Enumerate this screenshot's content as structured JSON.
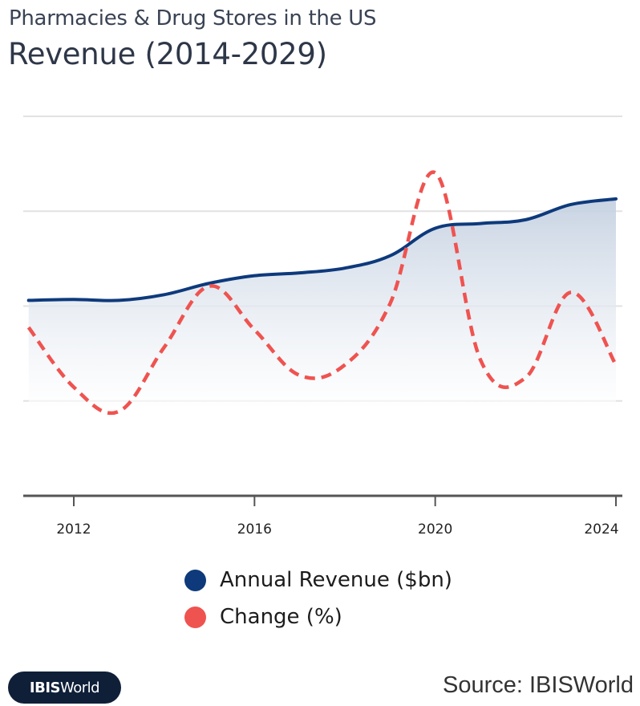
{
  "header": {
    "subtitle": "Pharmacies & Drug Stores in the US",
    "title": "Revenue (2014-2029)"
  },
  "chart_data": {
    "type": "line",
    "title": "Revenue (2014-2029)",
    "subtitle": "Pharmacies & Drug Stores in the US",
    "xlabel": "",
    "ylabel": "",
    "x": [
      2011,
      2012,
      2013,
      2014,
      2015,
      2016,
      2017,
      2018,
      2019,
      2020,
      2021,
      2022,
      2023,
      2024
    ],
    "xticks": [
      "2012",
      "2016",
      "2020",
      "2024"
    ],
    "xtick_values": [
      2012,
      2016,
      2020,
      2024
    ],
    "xlim": [
      2010.9,
      2024.1
    ],
    "grid": true,
    "y_tick_labels_shown": false,
    "series": [
      {
        "name": "Annual Revenue ($bn)",
        "style": "solid-area",
        "color": "#0e3a7c",
        "axis": "left",
        "ylim": [
          100,
          500
        ],
        "values": [
          306,
          307,
          306,
          312,
          324,
          332,
          335,
          340,
          353,
          382,
          387,
          391,
          407,
          413
        ]
      },
      {
        "name": "Change (%)",
        "style": "dashed",
        "color": "#ef5350",
        "axis": "right",
        "ylim": [
          -2,
          6
        ],
        "values": [
          1.55,
          0.29,
          -0.22,
          1.13,
          2.42,
          1.5,
          0.54,
          0.76,
          2.05,
          4.81,
          0.87,
          0.49,
          2.29,
          0.76
        ]
      }
    ],
    "legend": {
      "position": "bottom-center"
    }
  },
  "legend": {
    "items": [
      {
        "label": "Annual Revenue ($bn)",
        "color": "#0e3a7c"
      },
      {
        "label": "Change (%)",
        "color": "#ef5350"
      }
    ]
  },
  "footer": {
    "logo_bold": "IBIS",
    "logo_regular": "World",
    "source": "Source: IBISWorld"
  }
}
